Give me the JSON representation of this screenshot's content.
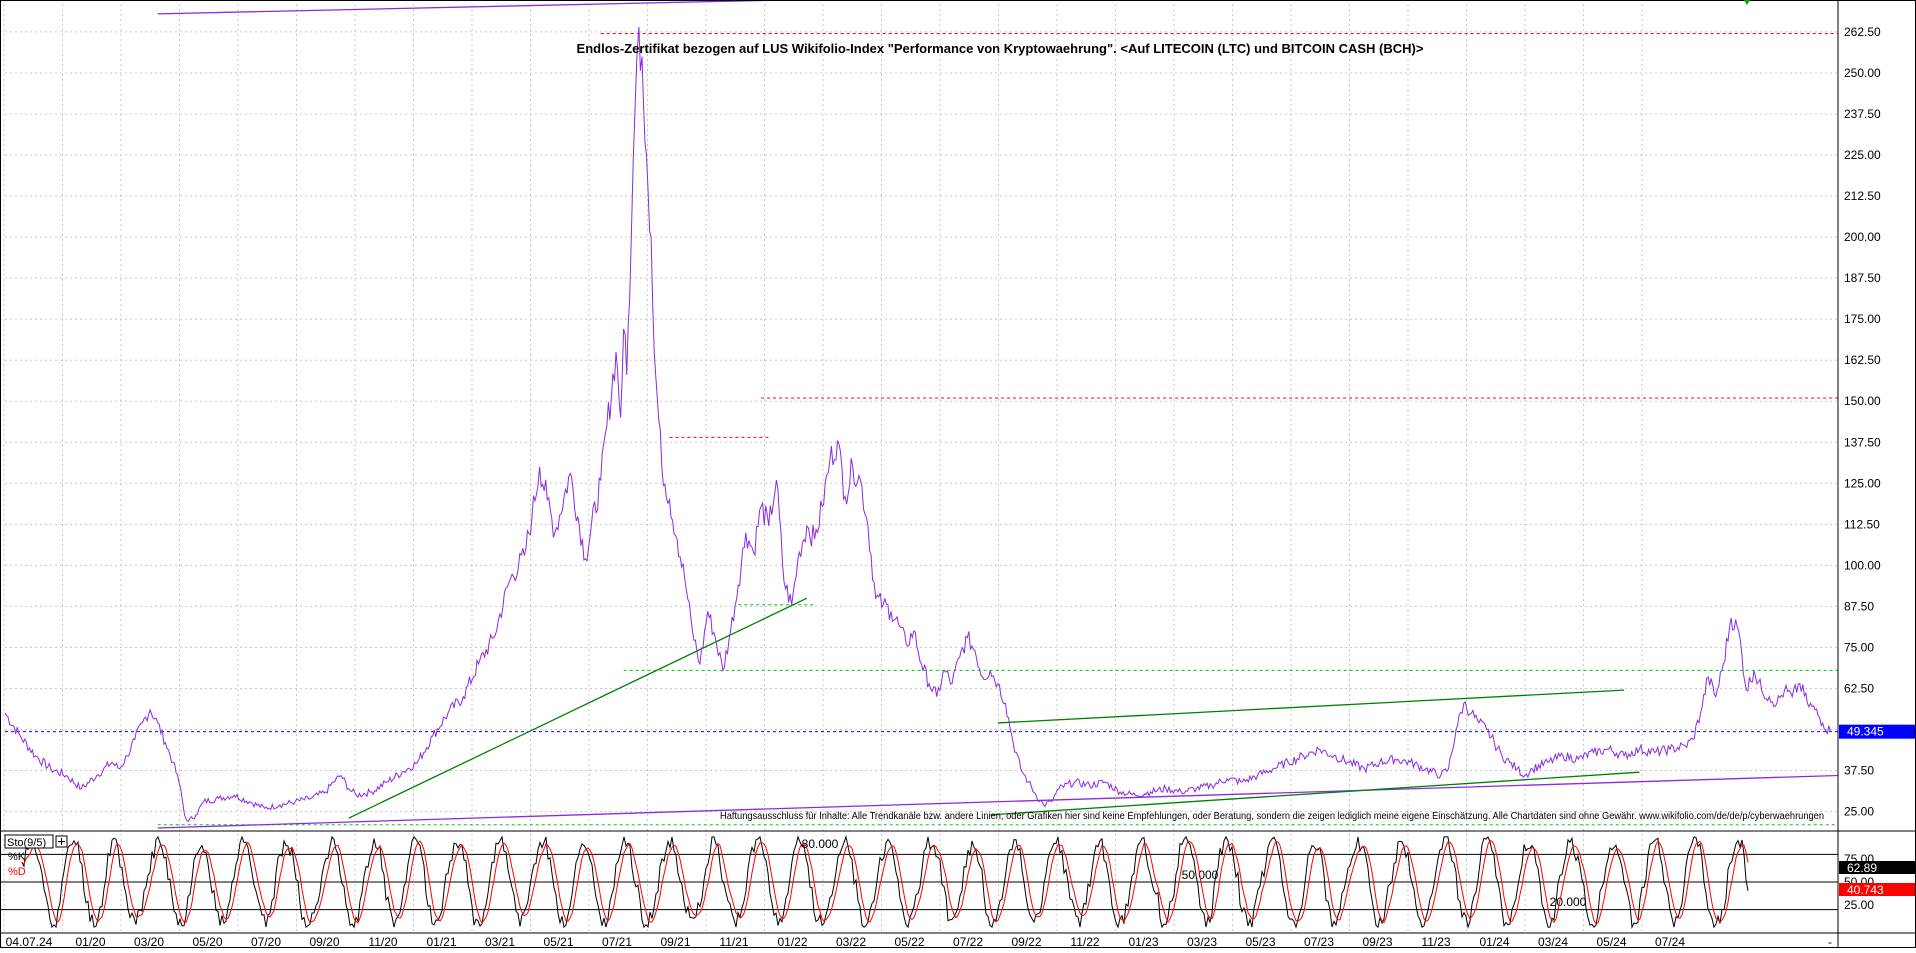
{
  "chart_data": {
    "type": "line",
    "title": "Endlos-Zertifikat bezogen auf LUS Wikifolio-Index \"Performance von Kryptowaehrung\". <Auf LITECOIN (LTC) und BITCOIN CASH (BCH)>",
    "disclaimer": "Haftungsausschluss für Inhalte: Alle Trendkanäle bzw. andere Linien, oder Grafiken hier sind keine Empfehlungen, oder Beratung, sondern die zeigen lediglich meine eigene Einschätzung. Alle Chartdaten sind ohne Gewähr.  www.wikifolio.com/de/de/p/cyberwaehrungen",
    "x_tick_labels": [
      "04.07.24",
      "01/20",
      "03/20",
      "05/20",
      "07/20",
      "09/20",
      "11/20",
      "01/21",
      "03/21",
      "05/21",
      "07/21",
      "09/21",
      "11/21",
      "01/22",
      "03/22",
      "05/22",
      "07/22",
      "09/22",
      "11/22",
      "01/23",
      "03/23",
      "05/23",
      "07/23",
      "09/23",
      "11/23",
      "01/24",
      "03/24",
      "05/24",
      "07/24"
    ],
    "y_ticks": [
      "262.50",
      "250.00",
      "237.50",
      "225.00",
      "212.50",
      "200.00",
      "187.50",
      "175.00",
      "162.50",
      "150.00",
      "137.50",
      "125.00",
      "112.50",
      "100.00",
      "87.50",
      "75.00",
      "62.50",
      "50.00",
      "37.50",
      "25.00"
    ],
    "ylim": [
      20.0,
      271.0
    ],
    "last_value_label": "49.345",
    "last_value": 49.345,
    "series": [
      {
        "color": "#8a2be2",
        "points": [
          [
            0,
            55
          ],
          [
            2,
            48
          ],
          [
            4,
            42
          ],
          [
            6,
            38
          ],
          [
            8,
            36
          ],
          [
            10,
            32
          ],
          [
            12,
            36
          ],
          [
            14,
            40
          ],
          [
            15,
            38
          ],
          [
            16,
            42
          ],
          [
            17,
            47
          ],
          [
            18,
            52
          ],
          [
            19,
            56
          ],
          [
            20,
            52
          ],
          [
            21,
            46
          ],
          [
            22,
            40
          ],
          [
            23,
            32
          ],
          [
            23.5,
            24
          ],
          [
            24,
            22
          ],
          [
            25,
            24
          ],
          [
            26,
            28
          ],
          [
            28,
            29
          ],
          [
            30,
            30
          ],
          [
            32,
            28
          ],
          [
            34,
            26
          ],
          [
            36,
            27
          ],
          [
            38,
            28
          ],
          [
            40,
            29
          ],
          [
            42,
            31
          ],
          [
            43,
            34
          ],
          [
            44,
            36
          ],
          [
            45,
            32
          ],
          [
            46,
            30
          ],
          [
            48,
            31
          ],
          [
            50,
            34
          ],
          [
            52,
            37
          ],
          [
            54,
            40
          ],
          [
            56,
            48
          ],
          [
            58,
            55
          ],
          [
            60,
            60
          ],
          [
            62,
            70
          ],
          [
            64,
            78
          ],
          [
            66,
            95
          ],
          [
            68,
            103
          ],
          [
            69,
            115
          ],
          [
            70,
            130
          ],
          [
            71,
            120
          ],
          [
            72,
            110
          ],
          [
            74,
            128
          ],
          [
            76,
            102
          ],
          [
            78,
            126
          ],
          [
            80,
            165
          ],
          [
            80.6,
            145
          ],
          [
            81,
            172
          ],
          [
            81.4,
            158
          ],
          [
            82,
            200
          ],
          [
            82.5,
            240
          ],
          [
            83,
            264
          ],
          [
            83.4,
            255
          ],
          [
            84,
            225
          ],
          [
            84.6,
            200
          ],
          [
            85,
            165
          ],
          [
            86,
            130
          ],
          [
            87,
            120
          ],
          [
            88,
            108
          ],
          [
            89,
            96
          ],
          [
            90,
            80
          ],
          [
            91,
            70
          ],
          [
            92,
            86
          ],
          [
            93,
            78
          ],
          [
            94,
            68
          ],
          [
            95,
            80
          ],
          [
            96,
            94
          ],
          [
            97,
            110
          ],
          [
            98,
            104
          ],
          [
            99,
            118
          ],
          [
            100,
            112
          ],
          [
            101,
            126
          ],
          [
            102,
            95
          ],
          [
            103,
            88
          ],
          [
            104,
            104
          ],
          [
            105,
            112
          ],
          [
            106,
            108
          ],
          [
            107,
            118
          ],
          [
            108,
            132
          ],
          [
            109,
            138
          ],
          [
            110,
            121
          ],
          [
            111,
            130
          ],
          [
            112,
            126
          ],
          [
            113,
            112
          ],
          [
            114,
            90
          ],
          [
            115,
            88
          ],
          [
            116,
            86
          ],
          [
            117,
            82
          ],
          [
            118,
            76
          ],
          [
            119,
            80
          ],
          [
            120,
            70
          ],
          [
            121,
            64
          ],
          [
            122,
            60
          ],
          [
            123,
            68
          ],
          [
            124,
            64
          ],
          [
            125,
            72
          ],
          [
            126,
            78
          ],
          [
            127,
            74
          ],
          [
            128,
            66
          ],
          [
            129,
            68
          ],
          [
            130,
            64
          ],
          [
            131,
            58
          ],
          [
            132,
            46
          ],
          [
            133,
            38
          ],
          [
            134,
            34
          ],
          [
            135,
            30
          ],
          [
            136,
            27
          ],
          [
            137,
            28
          ],
          [
            138,
            32
          ],
          [
            140,
            34
          ],
          [
            142,
            33
          ],
          [
            144,
            34
          ],
          [
            146,
            31
          ],
          [
            148,
            30
          ],
          [
            150,
            31
          ],
          [
            152,
            32
          ],
          [
            154,
            31
          ],
          [
            156,
            32
          ],
          [
            158,
            33
          ],
          [
            160,
            35
          ],
          [
            162,
            34
          ],
          [
            164,
            36
          ],
          [
            166,
            38
          ],
          [
            168,
            40
          ],
          [
            170,
            42
          ],
          [
            172,
            44
          ],
          [
            174,
            42
          ],
          [
            176,
            40
          ],
          [
            178,
            38
          ],
          [
            180,
            40
          ],
          [
            182,
            41
          ],
          [
            184,
            40
          ],
          [
            186,
            38
          ],
          [
            188,
            36
          ],
          [
            189,
            38
          ],
          [
            190,
            50
          ],
          [
            191,
            58
          ],
          [
            192,
            55
          ],
          [
            193,
            52
          ],
          [
            194,
            50
          ],
          [
            195,
            46
          ],
          [
            196,
            42
          ],
          [
            197,
            40
          ],
          [
            198,
            38
          ],
          [
            199,
            36
          ],
          [
            200,
            38
          ],
          [
            202,
            40
          ],
          [
            204,
            42
          ],
          [
            206,
            41
          ],
          [
            208,
            43
          ],
          [
            210,
            44
          ],
          [
            212,
            42
          ],
          [
            214,
            44
          ],
          [
            216,
            43
          ],
          [
            218,
            44
          ],
          [
            220,
            45
          ],
          [
            221,
            47
          ],
          [
            222,
            55
          ],
          [
            223,
            66
          ],
          [
            224,
            60
          ],
          [
            225,
            70
          ],
          [
            226,
            84
          ],
          [
            227,
            80
          ],
          [
            228,
            62
          ],
          [
            229,
            68
          ],
          [
            230,
            62
          ],
          [
            231,
            60
          ],
          [
            232,
            58
          ],
          [
            233,
            62
          ],
          [
            234,
            60
          ],
          [
            235,
            64
          ],
          [
            236,
            58
          ],
          [
            237,
            56
          ],
          [
            238,
            52
          ],
          [
            239,
            49.3
          ]
        ]
      }
    ],
    "trendlines": [
      {
        "x1": 20,
        "y1": 268,
        "x2": 175,
        "y2": 276,
        "color": "#8a2be2"
      },
      {
        "x1": 20,
        "y1": 20,
        "x2": 240,
        "y2": 36,
        "color": "#8a2be2"
      },
      {
        "x1": 45,
        "y1": 23,
        "x2": 105,
        "y2": 90,
        "color": "#008000"
      },
      {
        "x1": 130,
        "y1": 52,
        "x2": 212,
        "y2": 62,
        "color": "#008000"
      },
      {
        "x1": 129,
        "y1": 24,
        "x2": 214,
        "y2": 37,
        "color": "#008000"
      }
    ],
    "dashed_levels": [
      {
        "y": 49.345,
        "x1": 0,
        "x2": 240,
        "color": "#0000ff"
      },
      {
        "y": 262,
        "x1": 78,
        "x2": 240,
        "color": "#ff0000"
      },
      {
        "y": 151,
        "x1": 99,
        "x2": 240,
        "color": "#ff0000"
      },
      {
        "y": 139,
        "x1": 87,
        "x2": 100,
        "color": "#ff0000"
      },
      {
        "y": 68,
        "x1": 81,
        "x2": 240,
        "color": "#00cc00"
      },
      {
        "y": 88,
        "x1": 96,
        "x2": 106,
        "color": "#00cc00"
      },
      {
        "y": 21,
        "x1": 20,
        "x2": 240,
        "color": "#00cc00"
      }
    ],
    "oscillator": {
      "label": "Sto(9/5)",
      "k_label": "%K",
      "d_label": "%D",
      "levels": [
        {
          "value": 80,
          "label": "80.000"
        },
        {
          "value": 50,
          "label": "50.000"
        },
        {
          "value": 20,
          "label": "20.000"
        }
      ],
      "y_ticks": [
        "75.00",
        "50.00",
        "25.00"
      ],
      "k_value_label": "62.89",
      "d_value_label": "40.743",
      "k_color": "#000000",
      "d_color": "#ff0000"
    }
  }
}
